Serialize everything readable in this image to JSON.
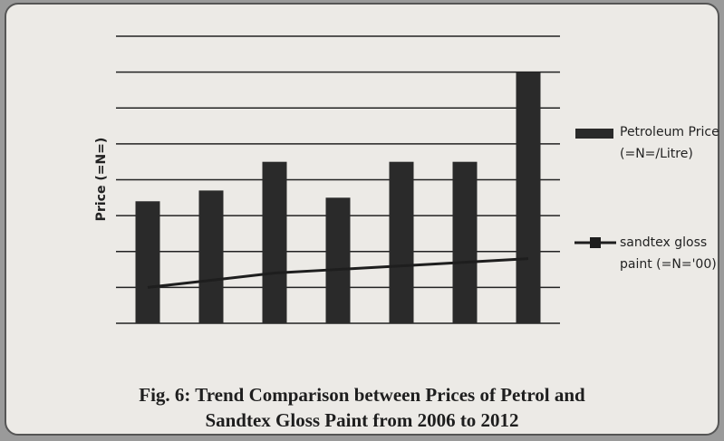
{
  "chart_data": {
    "type": "bar-line",
    "title": [
      "Fig. 6: Trend Comparison between Prices of Petrol and",
      "Sandtex Gloss Paint from 2006 to 2012"
    ],
    "ylabel": "Price (=N=)",
    "categories": [
      null,
      null,
      null,
      null,
      null,
      null,
      null
    ],
    "series": [
      {
        "name": "Petroleum Price (=N=/Litre)",
        "type": "bar",
        "color": "#2a2a2a",
        "values": [
          3.4,
          3.7,
          4.5,
          3.5,
          4.5,
          4.5,
          7.0
        ]
      },
      {
        "name": "sandtex gloss paint (=N='00)",
        "type": "line",
        "color": "#1e1e1e",
        "values": [
          1.0,
          1.2,
          1.4,
          1.5,
          1.6,
          1.7,
          1.8
        ]
      }
    ],
    "ylim": [
      0,
      8
    ],
    "yticks": [
      0,
      1,
      2,
      3,
      4,
      5,
      6,
      7,
      8
    ],
    "grid": true,
    "legend": "right"
  }
}
